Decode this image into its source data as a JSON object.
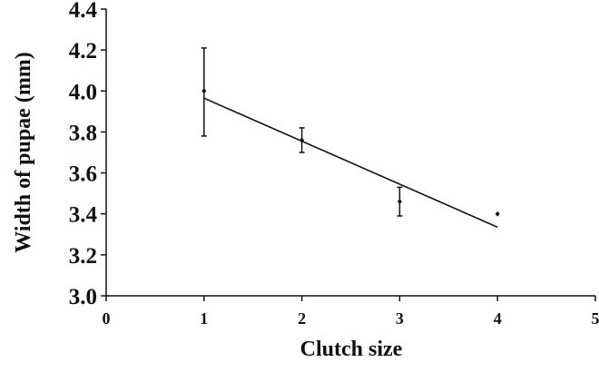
{
  "chart_data": {
    "type": "scatter",
    "xlabel": "Clutch size",
    "ylabel": "Width of pupae (mm)",
    "xlim": [
      0,
      5
    ],
    "ylim": [
      3.0,
      4.4
    ],
    "x_ticks": [
      "0",
      "1",
      "2",
      "3",
      "4",
      "5"
    ],
    "y_ticks": [
      "3.0",
      "3.2",
      "3.4",
      "3.6",
      "3.8",
      "4.0",
      "4.2",
      "4.4"
    ],
    "grid": false,
    "points": [
      {
        "x": 1,
        "y": 4.0,
        "err_low": 3.78,
        "err_high": 4.21
      },
      {
        "x": 2,
        "y": 3.76,
        "err_low": 3.7,
        "err_high": 3.82
      },
      {
        "x": 3,
        "y": 3.46,
        "err_low": 3.39,
        "err_high": 3.53
      },
      {
        "x": 4,
        "y": 3.4,
        "err_low": 3.4,
        "err_high": 3.4
      }
    ],
    "trendline": {
      "x": [
        1,
        4
      ],
      "y": [
        3.965,
        3.335
      ]
    },
    "colors": {
      "ink": "#111111",
      "background": "#ffffff"
    }
  }
}
